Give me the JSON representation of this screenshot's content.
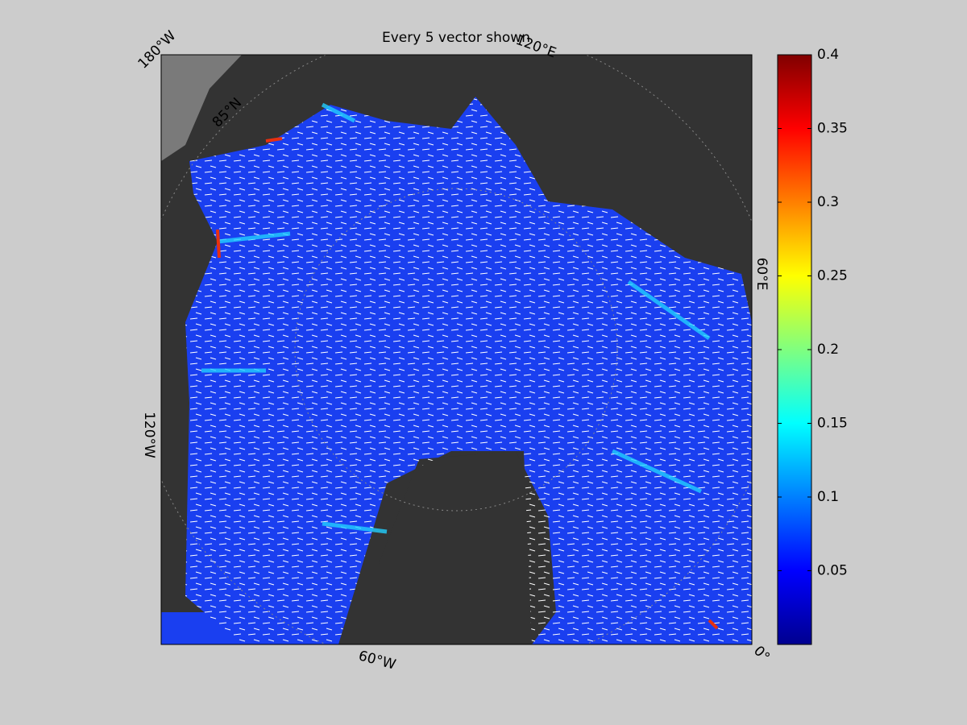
{
  "map": {
    "title": "Every 5 vector shown",
    "grid_labels": [
      "180°W",
      "120°E",
      "60°E",
      "0°",
      "60°W",
      "120°W",
      "85°N"
    ]
  },
  "colorbar": {
    "clim": [
      0,
      0.4
    ],
    "ticks": [
      0.05,
      0.1,
      0.15,
      0.2,
      0.25,
      0.3,
      0.35,
      0.4
    ],
    "colormap": "jet"
  }
}
